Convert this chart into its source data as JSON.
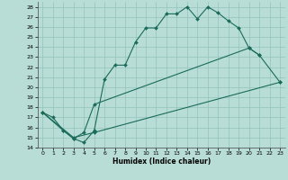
{
  "xlabel": "Humidex (Indice chaleur)",
  "xlim": [
    -0.5,
    23.5
  ],
  "ylim": [
    14,
    28.5
  ],
  "xticks": [
    0,
    1,
    2,
    3,
    4,
    5,
    6,
    7,
    8,
    9,
    10,
    11,
    12,
    13,
    14,
    15,
    16,
    17,
    18,
    19,
    20,
    21,
    22,
    23
  ],
  "yticks": [
    14,
    15,
    16,
    17,
    18,
    19,
    20,
    21,
    22,
    23,
    24,
    25,
    26,
    27,
    28
  ],
  "bg_color": "#b8ddd6",
  "grid_color": "#92c4bc",
  "line_color": "#1a6b5a",
  "line1_x": [
    0,
    1,
    2,
    3,
    4,
    5,
    6,
    7,
    8,
    9,
    10,
    11,
    12,
    13,
    14,
    15,
    16,
    17,
    18,
    19,
    20,
    21
  ],
  "line1_y": [
    17.5,
    17.0,
    15.7,
    14.9,
    14.5,
    15.7,
    20.8,
    22.2,
    22.2,
    24.5,
    25.9,
    25.9,
    27.3,
    27.3,
    28.0,
    26.8,
    28.0,
    27.4,
    26.6,
    25.9,
    23.9,
    23.2
  ],
  "line2_x": [
    0,
    2,
    3,
    4,
    5,
    20,
    21,
    23
  ],
  "line2_y": [
    17.5,
    15.7,
    14.9,
    15.5,
    18.3,
    23.9,
    23.2,
    20.5
  ],
  "line3_x": [
    0,
    3,
    5,
    23
  ],
  "line3_y": [
    17.5,
    15.0,
    15.5,
    20.5
  ]
}
